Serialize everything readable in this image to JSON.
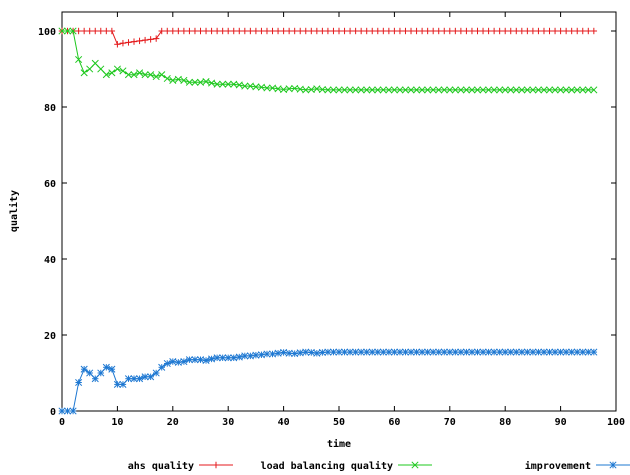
{
  "chart_data": {
    "type": "line",
    "title": "",
    "xlabel": "time",
    "ylabel": "quality",
    "xlim": [
      0,
      100
    ],
    "ylim": [
      0,
      105
    ],
    "xticks": [
      0,
      10,
      20,
      30,
      40,
      50,
      60,
      70,
      80,
      90,
      100
    ],
    "yticks": [
      0,
      20,
      40,
      60,
      80,
      100
    ],
    "grid": false,
    "legend_position": "bottom",
    "x": [
      0,
      1,
      2,
      3,
      4,
      5,
      6,
      7,
      8,
      9,
      10,
      11,
      12,
      13,
      14,
      15,
      16,
      17,
      18,
      19,
      20,
      21,
      22,
      23,
      24,
      25,
      26,
      27,
      28,
      29,
      30,
      31,
      32,
      33,
      34,
      35,
      36,
      37,
      38,
      39,
      40,
      41,
      42,
      43,
      44,
      45,
      46,
      47,
      48,
      49,
      50,
      51,
      52,
      53,
      54,
      55,
      56,
      57,
      58,
      59,
      60,
      61,
      62,
      63,
      64,
      65,
      66,
      67,
      68,
      69,
      70,
      71,
      72,
      73,
      74,
      75,
      76,
      77,
      78,
      79,
      80,
      81,
      82,
      83,
      84,
      85,
      86,
      87,
      88,
      89,
      90,
      91,
      92,
      93,
      94,
      95,
      96
    ],
    "series": [
      {
        "name": "ahs quality",
        "color": "#e41a1c",
        "marker": "plus",
        "values": [
          100,
          100,
          100,
          100,
          100,
          100,
          100,
          100,
          100,
          100,
          96.5,
          96.8,
          97,
          97.2,
          97.4,
          97.6,
          97.8,
          98,
          100,
          100,
          100,
          100,
          100,
          100,
          100,
          100,
          100,
          100,
          100,
          100,
          100,
          100,
          100,
          100,
          100,
          100,
          100,
          100,
          100,
          100,
          100,
          100,
          100,
          100,
          100,
          100,
          100,
          100,
          100,
          100,
          100,
          100,
          100,
          100,
          100,
          100,
          100,
          100,
          100,
          100,
          100,
          100,
          100,
          100,
          100,
          100,
          100,
          100,
          100,
          100,
          100,
          100,
          100,
          100,
          100,
          100,
          100,
          100,
          100,
          100,
          100,
          100,
          100,
          100,
          100,
          100,
          100,
          100,
          100,
          100,
          100,
          100,
          100,
          100,
          100,
          100,
          100
        ]
      },
      {
        "name": "load balancing quality",
        "color": "#1ec81e",
        "marker": "x",
        "values": [
          100,
          100,
          100,
          92.5,
          89,
          90,
          91.5,
          90,
          88.5,
          89,
          90,
          89.5,
          88.5,
          88.5,
          89,
          88.5,
          88.5,
          88,
          88.5,
          87.5,
          87,
          87.3,
          87,
          86.5,
          86.5,
          86.5,
          86.7,
          86.3,
          86,
          86,
          86,
          86,
          85.8,
          85.5,
          85.5,
          85.3,
          85.2,
          85,
          85,
          84.8,
          84.6,
          84.8,
          84.9,
          84.7,
          84.5,
          84.6,
          84.8,
          84.6,
          84.5,
          84.5,
          84.5,
          84.5,
          84.5,
          84.5,
          84.5,
          84.5,
          84.5,
          84.5,
          84.5,
          84.5,
          84.5,
          84.5,
          84.5,
          84.5,
          84.5,
          84.5,
          84.5,
          84.5,
          84.5,
          84.5,
          84.5,
          84.5,
          84.5,
          84.5,
          84.5,
          84.5,
          84.5,
          84.5,
          84.5,
          84.5,
          84.5,
          84.5,
          84.5,
          84.5,
          84.5,
          84.5,
          84.5,
          84.5,
          84.5,
          84.5,
          84.5,
          84.5,
          84.5,
          84.5,
          84.5,
          84.5,
          84.5
        ]
      },
      {
        "name": "improvement",
        "color": "#1e78d2",
        "marker": "star",
        "values": [
          0,
          0,
          0,
          7.5,
          11,
          10,
          8.5,
          10,
          11.5,
          11,
          7,
          7,
          8.5,
          8.5,
          8.5,
          9,
          9,
          10,
          11.5,
          12.5,
          13,
          12.8,
          13,
          13.5,
          13.5,
          13.5,
          13.3,
          13.7,
          14,
          14,
          14,
          14,
          14.2,
          14.5,
          14.5,
          14.7,
          14.8,
          15,
          15,
          15.2,
          15.4,
          15.2,
          15.1,
          15.3,
          15.5,
          15.4,
          15.2,
          15.4,
          15.5,
          15.5,
          15.5,
          15.5,
          15.5,
          15.5,
          15.5,
          15.5,
          15.5,
          15.5,
          15.5,
          15.5,
          15.5,
          15.5,
          15.5,
          15.5,
          15.5,
          15.5,
          15.5,
          15.5,
          15.5,
          15.5,
          15.5,
          15.5,
          15.5,
          15.5,
          15.5,
          15.5,
          15.5,
          15.5,
          15.5,
          15.5,
          15.5,
          15.5,
          15.5,
          15.5,
          15.5,
          15.5,
          15.5,
          15.5,
          15.5,
          15.5,
          15.5,
          15.5,
          15.5,
          15.5,
          15.5,
          15.5,
          15.5
        ]
      }
    ]
  }
}
